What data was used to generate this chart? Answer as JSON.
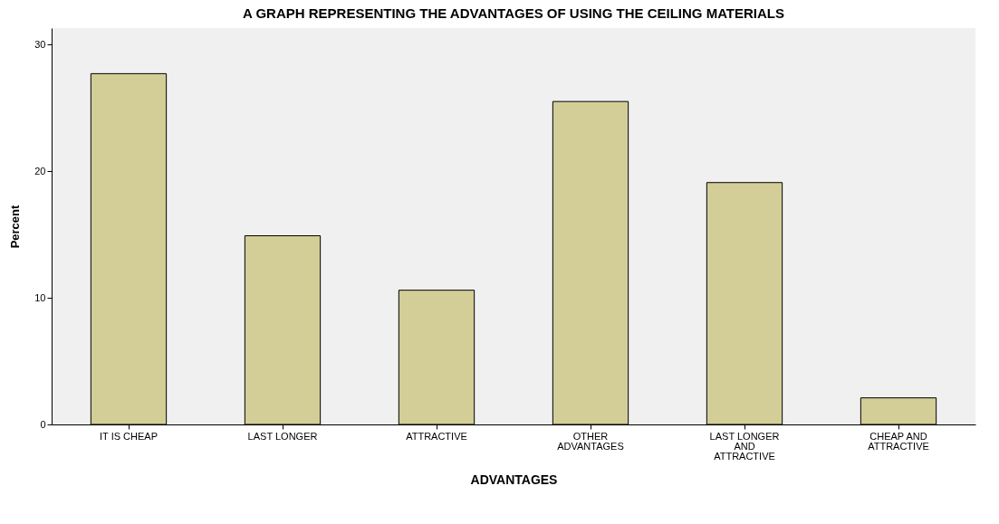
{
  "chart_data": {
    "type": "bar",
    "title": "A GRAPH REPRESENTING THE ADVANTAGES OF USING THE CEILING MATERIALS",
    "xlabel": "ADVANTAGES",
    "ylabel": "Percent",
    "categories": [
      "IT IS CHEAP",
      "LAST LONGER",
      "ATTRACTIVE",
      "OTHER ADVANTAGES",
      "LAST LONGER AND ATTRACTIVE",
      "CHEAP AND ATTRACTIVE"
    ],
    "values": [
      27.7,
      14.9,
      10.6,
      25.5,
      19.1,
      2.1
    ],
    "color": "#d3cd97",
    "ylim": [
      0,
      31.3
    ],
    "yticks": [
      0,
      10,
      20,
      30
    ],
    "grid": false
  }
}
